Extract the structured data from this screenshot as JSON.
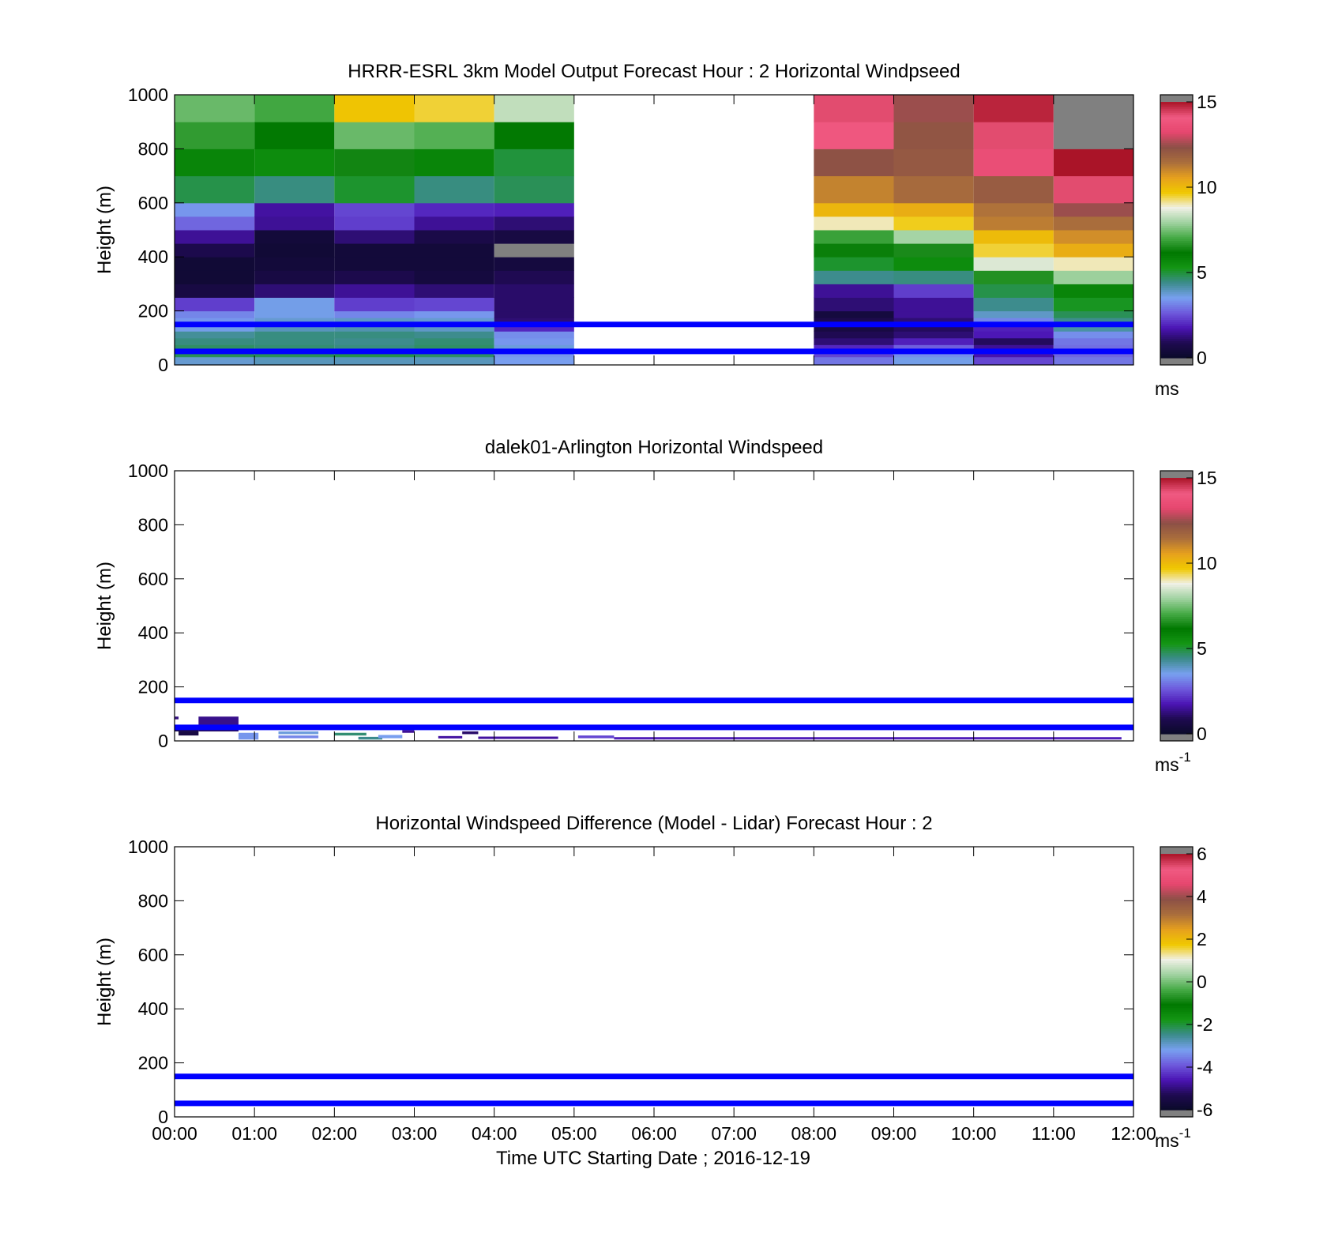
{
  "chart_data": [
    {
      "type": "heatmap",
      "title": "HRRR-ESRL 3km Model Output   Forecast Hour : 2 Horizontal Windpseed",
      "ylabel": "Height (m)",
      "xlabel": "",
      "xlim": [
        0,
        12
      ],
      "ylim": [
        0,
        1000
      ],
      "y_ticks": [
        "0",
        "200",
        "400",
        "600",
        "800",
        "1000"
      ],
      "x_ticks": [
        "00:00",
        "01:00",
        "02:00",
        "03:00",
        "04:00",
        "05:00",
        "06:00",
        "07:00",
        "08:00",
        "09:00",
        "10:00",
        "11:00",
        "12:00"
      ],
      "show_x_tick_labels": false,
      "reference_lines": [
        150,
        50
      ],
      "colorbar": {
        "min": 0,
        "max": 15,
        "ticks": [
          "0",
          "5",
          "10",
          "15"
        ],
        "unit": "ms",
        "unit_exponent": ""
      },
      "height_levels": [
        0,
        30,
        50,
        75,
        100,
        125,
        150,
        175,
        200,
        250,
        300,
        350,
        400,
        450,
        500,
        550,
        600,
        700,
        800,
        900,
        1000
      ],
      "columns": [
        {
          "t": [
            0,
            1
          ],
          "values": [
            3.8,
            4.8,
            4.7,
            4.5,
            4.3,
            3.6,
            3.4,
            3.2,
            2.3,
            0.6,
            0.3,
            0.3,
            0.8,
            1.5,
            2.8,
            3.4,
            4.9,
            5.8,
            6.8,
            7.4
          ]
        },
        {
          "t": [
            1,
            2
          ],
          "values": [
            4.0,
            4.8,
            4.6,
            4.5,
            4.5,
            4.0,
            3.8,
            3.6,
            3.6,
            1.2,
            0.6,
            0.4,
            0.3,
            0.4,
            1.5,
            1.6,
            4.5,
            5.6,
            6.2,
            7.0
          ]
        },
        {
          "t": [
            2,
            3
          ],
          "values": [
            4.0,
            4.9,
            4.5,
            4.4,
            4.5,
            4.1,
            3.9,
            3.2,
            2.3,
            1.5,
            0.8,
            0.4,
            0.4,
            1.2,
            2.3,
            2.4,
            5.1,
            6.4,
            7.4,
            9.8
          ]
        },
        {
          "t": [
            3,
            4
          ],
          "values": [
            4.0,
            4.7,
            4.7,
            4.6,
            4.4,
            3.9,
            3.8,
            3.4,
            2.4,
            1.2,
            0.5,
            0.4,
            0.4,
            0.7,
            1.5,
            2.0,
            4.5,
            5.8,
            7.2,
            9.5
          ]
        },
        {
          "t": [
            4,
            5
          ],
          "values": [
            3.5,
            3.4,
            3.7,
            3.4,
            3.3,
            2.0,
            1.2,
            1.1,
            1.1,
            1.1,
            0.9,
            0.5,
            15.2,
            0.6,
            1.2,
            1.9,
            4.8,
            5.0,
            6.2,
            8.3
          ]
        },
        {
          "t": [
            8,
            9
          ],
          "values": [
            3.0,
            2.4,
            2.0,
            1.2,
            0.9,
            0.6,
            0.8,
            0.5,
            1.2,
            1.5,
            4.4,
            5.1,
            6.3,
            6.9,
            9.0,
            10.1,
            11.1,
            12.3,
            14.0,
            14.3
          ]
        },
        {
          "t": [
            9,
            10
          ],
          "values": [
            3.6,
            3.3,
            2.7,
            1.9,
            1.2,
            1.0,
            1.2,
            1.5,
            1.5,
            2.3,
            4.5,
            5.6,
            6.5,
            8.0,
            9.6,
            10.3,
            11.6,
            12.1,
            12.2,
            12.5
          ]
        },
        {
          "t": [
            10,
            11
          ],
          "values": [
            2.4,
            1.7,
            1.5,
            1.0,
            1.8,
            1.9,
            3.2,
            3.9,
            4.4,
            4.9,
            6.6,
            8.6,
            9.5,
            10.0,
            11.2,
            11.4,
            12.0,
            13.6,
            14.3,
            14.8
          ]
        },
        {
          "t": [
            11,
            12
          ],
          "values": [
            3.0,
            2.8,
            2.9,
            3.0,
            3.3,
            4.2,
            4.4,
            4.8,
            5.2,
            5.8,
            7.9,
            9.0,
            10.3,
            10.9,
            11.5,
            12.5,
            14.3,
            15.0,
            16.0,
            16.0
          ]
        }
      ]
    },
    {
      "type": "heatmap",
      "title": "dalek01-Arlington  Horizontal Windspeed",
      "ylabel": "Height (m)",
      "xlabel": "",
      "xlim": [
        0,
        12
      ],
      "ylim": [
        0,
        1000
      ],
      "y_ticks": [
        "0",
        "200",
        "400",
        "600",
        "800",
        "1000"
      ],
      "x_ticks": [
        "00:00",
        "01:00",
        "02:00",
        "03:00",
        "04:00",
        "05:00",
        "06:00",
        "07:00",
        "08:00",
        "09:00",
        "10:00",
        "11:00",
        "12:00"
      ],
      "show_x_tick_labels": false,
      "reference_lines": [
        150,
        50
      ],
      "colorbar": {
        "min": 0,
        "max": 15,
        "ticks": [
          "0",
          "5",
          "10",
          "15"
        ],
        "unit": "ms",
        "unit_exponent": "-1"
      },
      "cells": [
        {
          "t": [
            0.0,
            0.05
          ],
          "h": [
            80,
            90
          ],
          "v": 1.3
        },
        {
          "t": [
            0.05,
            0.3
          ],
          "h": [
            20,
            35
          ],
          "v": 0.6
        },
        {
          "t": [
            0.3,
            0.8
          ],
          "h": [
            60,
            90
          ],
          "v": 1.4
        },
        {
          "t": [
            0.3,
            0.8
          ],
          "h": [
            35,
            60
          ],
          "v": 1.0
        },
        {
          "t": [
            0.0,
            0.3
          ],
          "h": [
            35,
            45
          ],
          "v": 0.7
        },
        {
          "t": [
            0.8,
            1.05
          ],
          "h": [
            5,
            30
          ],
          "v": 3.4
        },
        {
          "t": [
            1.3,
            1.8
          ],
          "h": [
            10,
            20
          ],
          "v": 3.2
        },
        {
          "t": [
            1.3,
            1.8
          ],
          "h": [
            25,
            35
          ],
          "v": 3.7
        },
        {
          "t": [
            2.0,
            2.4
          ],
          "h": [
            20,
            30
          ],
          "v": 4.6
        },
        {
          "t": [
            2.3,
            2.6
          ],
          "h": [
            5,
            15
          ],
          "v": 4.4
        },
        {
          "t": [
            2.55,
            2.85
          ],
          "h": [
            10,
            22
          ],
          "v": 3.5
        },
        {
          "t": [
            2.85,
            3.0
          ],
          "h": [
            30,
            40
          ],
          "v": 1.5
        },
        {
          "t": [
            3.3,
            3.6
          ],
          "h": [
            10,
            18
          ],
          "v": 1.6
        },
        {
          "t": [
            3.6,
            3.8
          ],
          "h": [
            25,
            35
          ],
          "v": 1.1
        },
        {
          "t": [
            3.8,
            4.8
          ],
          "h": [
            8,
            16
          ],
          "v": 1.6
        },
        {
          "t": [
            5.05,
            5.5
          ],
          "h": [
            10,
            20
          ],
          "v": 2.4
        },
        {
          "t": [
            5.5,
            11.85
          ],
          "h": [
            6,
            14
          ],
          "v": 1.9
        }
      ]
    },
    {
      "type": "heatmap",
      "title": "Horizontal Windspeed Difference (Model - Lidar) Forecast Hour : 2",
      "ylabel": "Height (m)",
      "xlabel": "Time UTC  Starting Date ; 2016-12-19",
      "xlim": [
        0,
        12
      ],
      "ylim": [
        0,
        1000
      ],
      "y_ticks": [
        "0",
        "200",
        "400",
        "600",
        "800",
        "1000"
      ],
      "x_ticks": [
        "00:00",
        "01:00",
        "02:00",
        "03:00",
        "04:00",
        "05:00",
        "06:00",
        "07:00",
        "08:00",
        "09:00",
        "10:00",
        "11:00",
        "12:00"
      ],
      "show_x_tick_labels": true,
      "reference_lines": [
        150,
        50
      ],
      "colorbar": {
        "min": -6,
        "max": 6,
        "ticks": [
          "-6",
          "-4",
          "-2",
          "0",
          "2",
          "4",
          "6"
        ],
        "unit": "ms",
        "unit_exponent": "-1"
      },
      "cells": []
    }
  ],
  "colors": {
    "reference_line": "#0000ff",
    "colormap_out_of_range": "#808080",
    "colormap_stops": [
      "#0a0a28",
      "#1e0a50",
      "#4b14b4",
      "#6e5adc",
      "#78a0f0",
      "#3c8c8c",
      "#149614",
      "#007800",
      "#46aa46",
      "#a0d2a0",
      "#f0f0e6",
      "#f0c800",
      "#e6a01e",
      "#aa6e3c",
      "#8c5046",
      "#e6466e",
      "#f05a82",
      "#aa1428"
    ]
  }
}
